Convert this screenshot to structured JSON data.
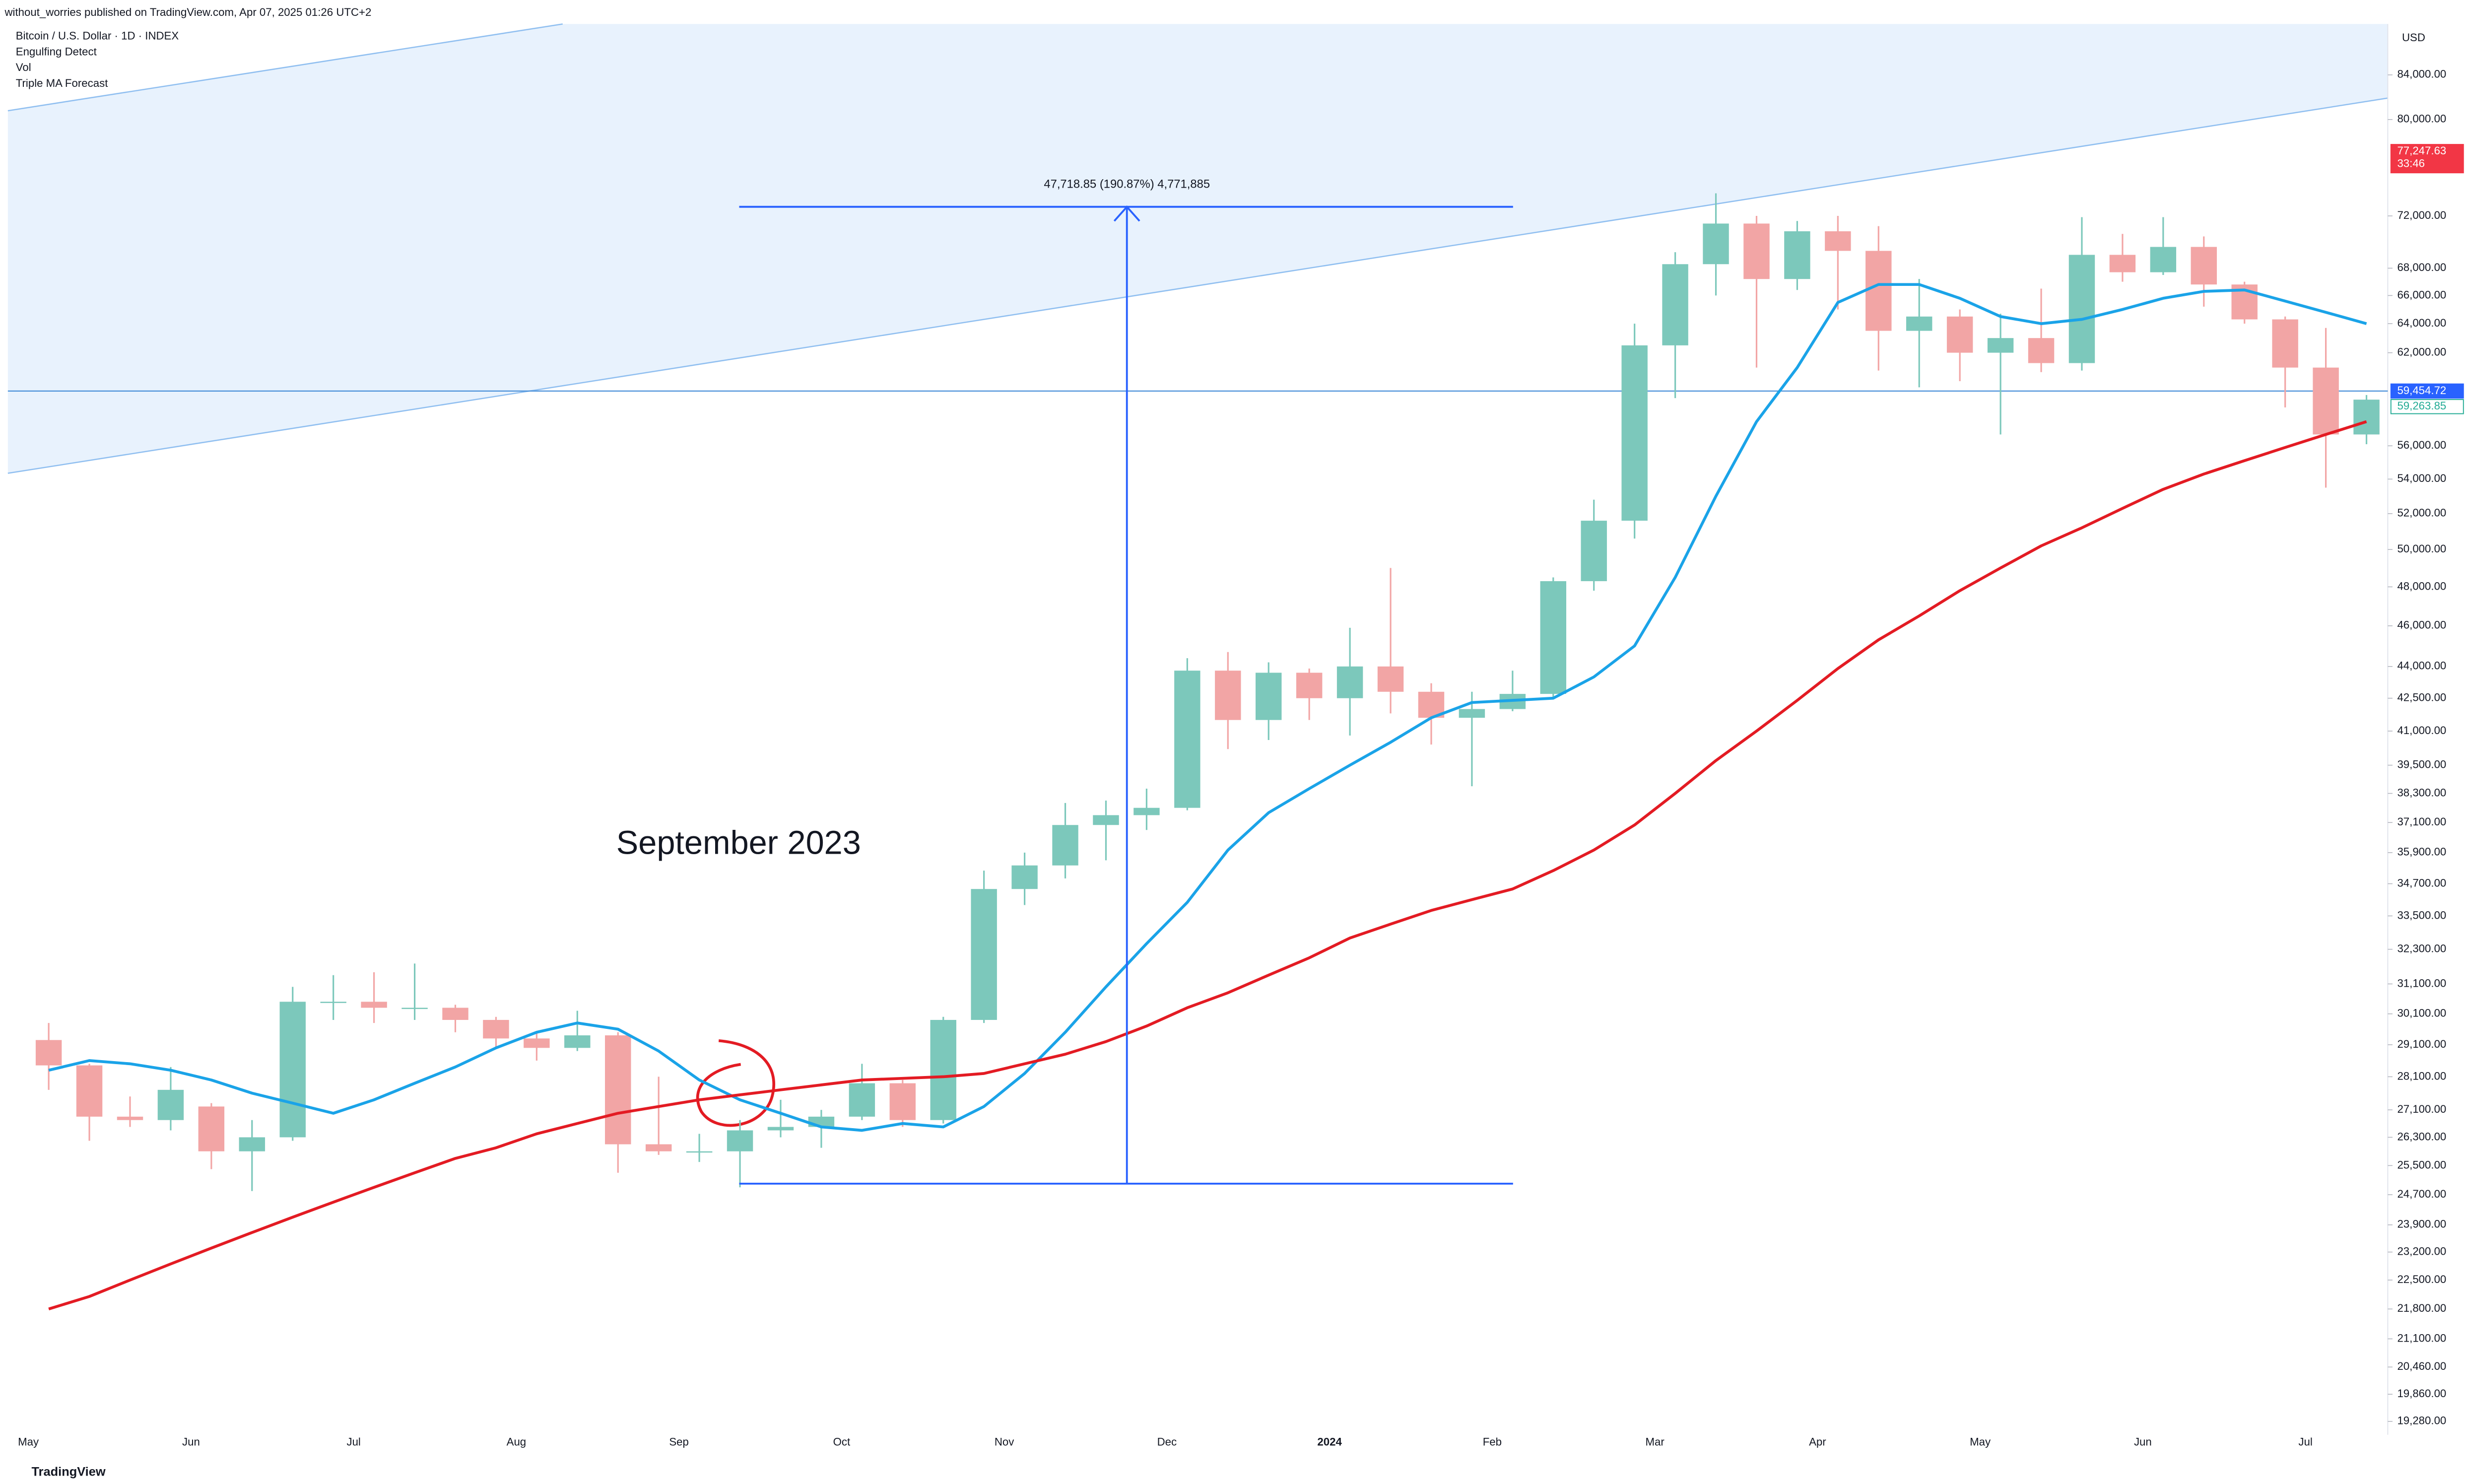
{
  "chart_data": {
    "type": "candlestick",
    "header": "without_worries published on TradingView.com, Apr 07, 2025 01:26 UTC+2",
    "legend": [
      "Bitcoin / U.S. Dollar · 1D · INDEX",
      "Engulfing Detect",
      "Vol",
      "Triple MA Forecast"
    ],
    "axis_unit": "USD",
    "annotation": "September 2023",
    "footer": "TradingView",
    "log_scale": true,
    "grid": false,
    "up_color": "#7cc8bb",
    "down_color": "#f2a5a5",
    "categories": [
      "May",
      null,
      null,
      null,
      "Jun",
      null,
      null,
      null,
      "Jul",
      null,
      null,
      null,
      "Aug",
      null,
      null,
      null,
      "Sep",
      null,
      null,
      null,
      "Oct",
      null,
      null,
      null,
      "Nov",
      null,
      null,
      null,
      "Dec",
      null,
      null,
      null,
      "2024",
      null,
      null,
      null,
      "Feb",
      null,
      null,
      null,
      "Mar",
      null,
      null,
      null,
      "Apr",
      null,
      null,
      null,
      "May",
      null,
      null,
      null,
      "Jun",
      null,
      null,
      null,
      "Jul",
      null
    ],
    "open": [
      29250,
      28450,
      26900,
      26800,
      27200,
      25900,
      26300,
      30500,
      30500,
      30300,
      30300,
      29900,
      29300,
      29000,
      29400,
      26100,
      25900,
      25900,
      26500,
      26600,
      26900,
      27900,
      26800,
      29900,
      34500,
      35400,
      37000,
      37400,
      37700,
      43800,
      41500,
      43700,
      42500,
      44000,
      42800,
      41600,
      42000,
      42700,
      48300,
      51600,
      62500,
      68300,
      71400,
      67200,
      70800,
      69300,
      63500,
      64500,
      62000,
      63000,
      61300,
      69000,
      67700,
      69600,
      66800,
      64300,
      61000,
      56700
    ],
    "high": [
      29800,
      28500,
      27500,
      28400,
      27300,
      26800,
      31000,
      31400,
      31500,
      31800,
      30400,
      30000,
      29500,
      30200,
      29500,
      28100,
      26400,
      26800,
      27400,
      27100,
      28500,
      28000,
      30000,
      35200,
      35900,
      37900,
      38000,
      38500,
      44400,
      44700,
      44200,
      43900,
      45900,
      49000,
      43200,
      42800,
      43800,
      48500,
      52800,
      64000,
      69200,
      73800,
      72000,
      71600,
      72000,
      71200,
      67200,
      65000,
      64700,
      66500,
      71900,
      70600,
      71900,
      70400,
      67000,
      64500,
      63700,
      59200
    ],
    "low": [
      27700,
      26200,
      26600,
      26500,
      25400,
      24800,
      26200,
      29900,
      29800,
      29900,
      29500,
      29000,
      28600,
      28900,
      25300,
      25800,
      25600,
      24900,
      26300,
      26000,
      26800,
      26600,
      26700,
      29800,
      33900,
      34900,
      35600,
      36800,
      37600,
      40200,
      40600,
      41500,
      40800,
      41800,
      40400,
      38600,
      41900,
      42500,
      47800,
      50600,
      59000,
      66000,
      61000,
      66400,
      65000,
      60800,
      59700,
      60100,
      56700,
      60700,
      60800,
      67000,
      67500,
      65200,
      64000,
      58400,
      53500,
      56100
    ],
    "close": [
      28450,
      26900,
      26800,
      27700,
      25900,
      26300,
      30500,
      30500,
      30300,
      30300,
      29900,
      29300,
      29000,
      29400,
      26100,
      25900,
      25900,
      26500,
      26600,
      26900,
      27900,
      26800,
      29900,
      34500,
      35400,
      37000,
      37400,
      37700,
      43800,
      41500,
      43700,
      42500,
      44000,
      42800,
      41600,
      42000,
      42700,
      48300,
      51600,
      62500,
      68300,
      71400,
      67200,
      70800,
      69300,
      63500,
      64500,
      62000,
      63000,
      61300,
      69000,
      67700,
      69600,
      66800,
      64300,
      61000,
      56700,
      58900
    ],
    "lines": [
      {
        "color": "#1aa3e8",
        "values": [
          28300,
          28600,
          28500,
          28300,
          28000,
          27600,
          27300,
          27000,
          27400,
          27900,
          28400,
          29000,
          29500,
          29800,
          29600,
          28900,
          28000,
          27400,
          27000,
          26600,
          26500,
          26700,
          26600,
          27200,
          28200,
          29500,
          31000,
          32500,
          34000,
          36000,
          37500,
          38500,
          39500,
          40500,
          41600,
          42300,
          42400,
          42500,
          43500,
          45000,
          48500,
          53000,
          57500,
          61000,
          65500,
          66800,
          66800,
          65800,
          64500,
          64000,
          64300,
          65000,
          65800,
          66300,
          66400,
          65600,
          64800,
          64000
        ]
      },
      {
        "color": "#e31b23",
        "values": [
          21800,
          22100,
          22500,
          22900,
          23300,
          23700,
          24100,
          24500,
          24900,
          25300,
          25700,
          26000,
          26400,
          26700,
          27000,
          27200,
          27400,
          27550,
          27700,
          27850,
          28000,
          28050,
          28100,
          28200,
          28500,
          28800,
          29200,
          29700,
          30300,
          30800,
          31400,
          32000,
          32700,
          33200,
          33700,
          34100,
          34500,
          35200,
          36000,
          37000,
          38300,
          39700,
          41000,
          42400,
          43900,
          45300,
          46500,
          47800,
          49000,
          50200,
          51200,
          52300,
          53400,
          54300,
          55100,
          55900,
          56700,
          57500
        ]
      }
    ],
    "measure": {
      "label": "47,718.85 (190.87%) 4,771,885",
      "from": 25000,
      "to": 72718.85,
      "color": "#2962ff"
    },
    "price_labels": [
      {
        "value": 77247.63,
        "label": "77,247.63",
        "countdown": "33:46",
        "color": "#f23645"
      },
      {
        "value": 59454.72,
        "label": "59,454.72",
        "color": "#2962ff"
      },
      {
        "value": 59263.85,
        "label": "59,263.85",
        "color": "#22ab94"
      }
    ],
    "ylim": [
      19000,
      88800
    ],
    "yticks": [
      {
        "value": 84000,
        "label": "84,000.00"
      },
      {
        "value": 80000,
        "label": "80,000.00"
      },
      {
        "value": 72000,
        "label": "72,000.00"
      },
      {
        "value": 68000,
        "label": "68,000.00"
      },
      {
        "value": 66000,
        "label": "66,000.00"
      },
      {
        "value": 64000,
        "label": "64,000.00"
      },
      {
        "value": 62000,
        "label": "62,000.00"
      },
      {
        "value": 56000,
        "label": "56,000.00"
      },
      {
        "value": 54000,
        "label": "54,000.00"
      },
      {
        "value": 52000,
        "label": "52,000.00"
      },
      {
        "value": 50000,
        "label": "50,000.00"
      },
      {
        "value": 48000,
        "label": "48,000.00"
      },
      {
        "value": 46000,
        "label": "46,000.00"
      },
      {
        "value": 44000,
        "label": "44,000.00"
      },
      {
        "value": 42500,
        "label": "42,500.00"
      },
      {
        "value": 41000,
        "label": "41,000.00"
      },
      {
        "value": 39500,
        "label": "39,500.00"
      },
      {
        "value": 38300,
        "label": "38,300.00"
      },
      {
        "value": 37100,
        "label": "37,100.00"
      },
      {
        "value": 35900,
        "label": "35,900.00"
      },
      {
        "value": 34700,
        "label": "34,700.00"
      },
      {
        "value": 33500,
        "label": "33,500.00"
      },
      {
        "value": 32300,
        "label": "32,300.00"
      },
      {
        "value": 31100,
        "label": "31,100.00"
      },
      {
        "value": 30100,
        "label": "30,100.00"
      },
      {
        "value": 29100,
        "label": "29,100.00"
      },
      {
        "value": 28100,
        "label": "28,100.00"
      },
      {
        "value": 27100,
        "label": "27,100.00"
      },
      {
        "value": 26300,
        "label": "26,300.00"
      },
      {
        "value": 25500,
        "label": "25,500.00"
      },
      {
        "value": 24700,
        "label": "24,700.00"
      },
      {
        "value": 23900,
        "label": "23,900.00"
      },
      {
        "value": 23200,
        "label": "23,200.00"
      },
      {
        "value": 22500,
        "label": "22,500.00"
      },
      {
        "value": 21800,
        "label": "21,800.00"
      },
      {
        "value": 21100,
        "label": "21,100.00"
      },
      {
        "value": 20460,
        "label": "20,460.00"
      },
      {
        "value": 19860,
        "label": "19,860.00"
      },
      {
        "value": 19280,
        "label": "19,280.00"
      }
    ]
  }
}
